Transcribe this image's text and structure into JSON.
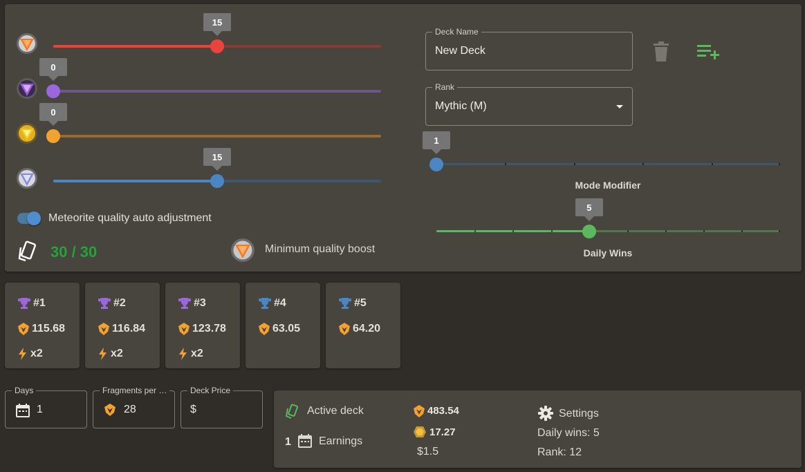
{
  "sliders": [
    {
      "name": "red",
      "value": "15",
      "fraction": 0.5,
      "color": "#e9443b",
      "track_color": "#8a3a34",
      "gem": "red-meteorite-icon"
    },
    {
      "name": "purple",
      "value": "0",
      "fraction": 0,
      "color": "#9a68db",
      "track_color": "#6c5688",
      "gem": "purple-meteorite-icon"
    },
    {
      "name": "orange",
      "value": "0",
      "fraction": 0,
      "color": "#f3a232",
      "track_color": "#9a6a30",
      "gem": "orange-meteorite-icon"
    },
    {
      "name": "blue",
      "value": "15",
      "fraction": 0.5,
      "color": "#4a86c4",
      "track_color": "#3d5672",
      "gem": "blue-meteorite-icon"
    }
  ],
  "auto_adjust": {
    "label": "Meteorite quality auto adjustment",
    "on": true
  },
  "card_count": "30 / 30",
  "min_quality": {
    "label": "Minimum quality boost",
    "icon": "orange-meteorite-icon"
  },
  "deck": {
    "name_label": "Deck Name",
    "name_value": "New Deck",
    "delete_icon": "trash-icon",
    "add_icon": "playlist-add-icon"
  },
  "rank": {
    "label": "Rank",
    "value": "Mythic (M)"
  },
  "mode_modifier": {
    "label": "Mode Modifier",
    "value": "1",
    "fraction": 0,
    "color": "#4a86c4"
  },
  "daily_wins": {
    "label": "Daily Wins",
    "value": "5",
    "fraction": 0.4444,
    "color": "#5cb85c"
  },
  "rank_cards": [
    {
      "rank": "#1",
      "fragments": "115.68",
      "boost": "x2",
      "trophy_color": "#9a68db"
    },
    {
      "rank": "#2",
      "fragments": "116.84",
      "boost": "x2",
      "trophy_color": "#9a68db"
    },
    {
      "rank": "#3",
      "fragments": "123.78",
      "boost": "x2",
      "trophy_color": "#9a68db"
    },
    {
      "rank": "#4",
      "fragments": "63.05",
      "boost": "",
      "trophy_color": "#4a86c4"
    },
    {
      "rank": "#5",
      "fragments": "64.20",
      "boost": "",
      "trophy_color": "#4a86c4"
    }
  ],
  "inputs": {
    "days_label": "Days",
    "days_value": "1",
    "fragments_label": "Fragments per …",
    "fragments_value": "28",
    "price_label": "Deck Price",
    "price_value": "$"
  },
  "summary": {
    "active_deck_label": "Active deck",
    "days": "1",
    "earnings_label": "Earnings",
    "fragments": "483.54",
    "coins": "17.27",
    "price": "$1.5",
    "settings_label": "Settings",
    "daily_wins": "Daily wins: 5",
    "rank": "Rank: 12"
  }
}
